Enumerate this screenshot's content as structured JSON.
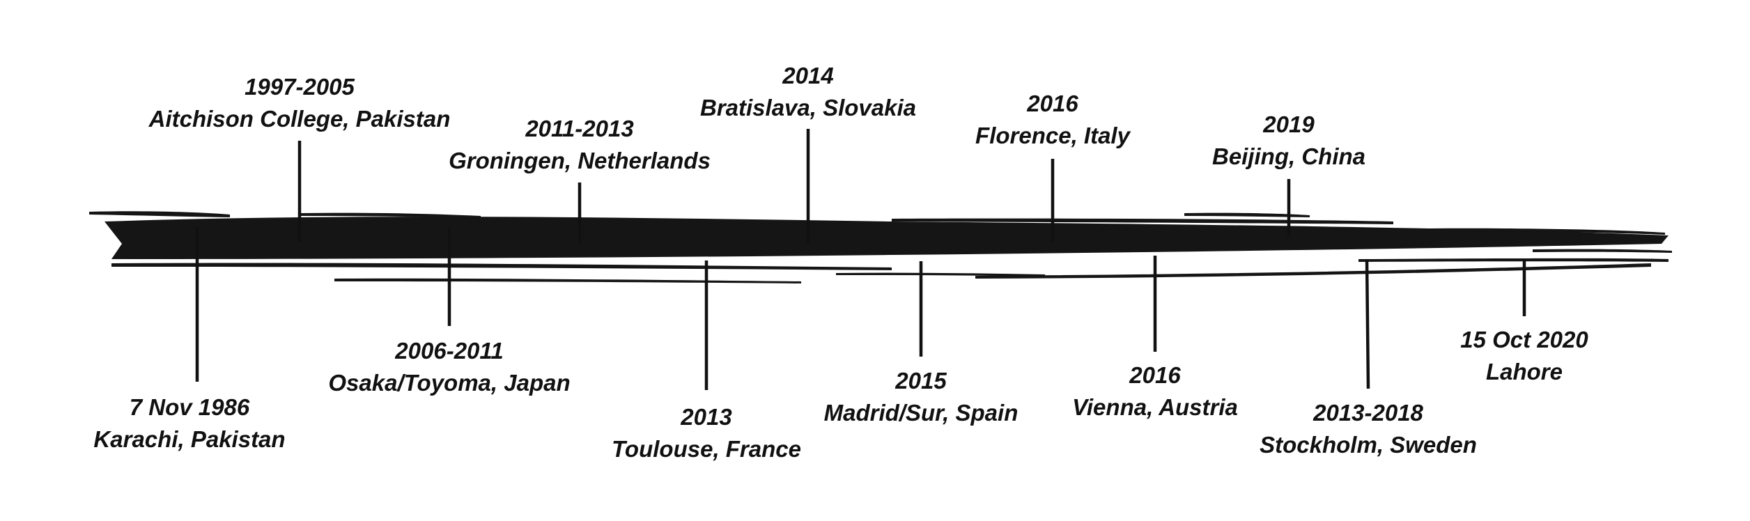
{
  "timeline": {
    "events": [
      {
        "date": "7 Nov 1986",
        "place": "Karachi, Pakistan",
        "side": "below"
      },
      {
        "date": "1997-2005",
        "place": "Aitchison College, Pakistan",
        "side": "above"
      },
      {
        "date": "2006-2011",
        "place": "Osaka/Toyoma, Japan",
        "side": "below"
      },
      {
        "date": "2011-2013",
        "place": "Groningen, Netherlands",
        "side": "above"
      },
      {
        "date": "2013",
        "place": "Toulouse, France",
        "side": "below"
      },
      {
        "date": "2014",
        "place": "Bratislava, Slovakia",
        "side": "above"
      },
      {
        "date": "2015",
        "place": "Madrid/Sur, Spain",
        "side": "below"
      },
      {
        "date": "2016",
        "place": "Florence, Italy",
        "side": "above"
      },
      {
        "date": "2016",
        "place": "Vienna, Austria",
        "side": "below"
      },
      {
        "date": "2019",
        "place": "Beijing, China",
        "side": "above"
      },
      {
        "date": "2013-2018",
        "place": "Stockholm, Sweden",
        "side": "below"
      },
      {
        "date": "15 Oct 2020",
        "place": "Lahore",
        "side": "below"
      }
    ]
  },
  "colors": {
    "brush": "#151515",
    "connector": "#111111",
    "text": "#111111",
    "background": "#ffffff"
  }
}
